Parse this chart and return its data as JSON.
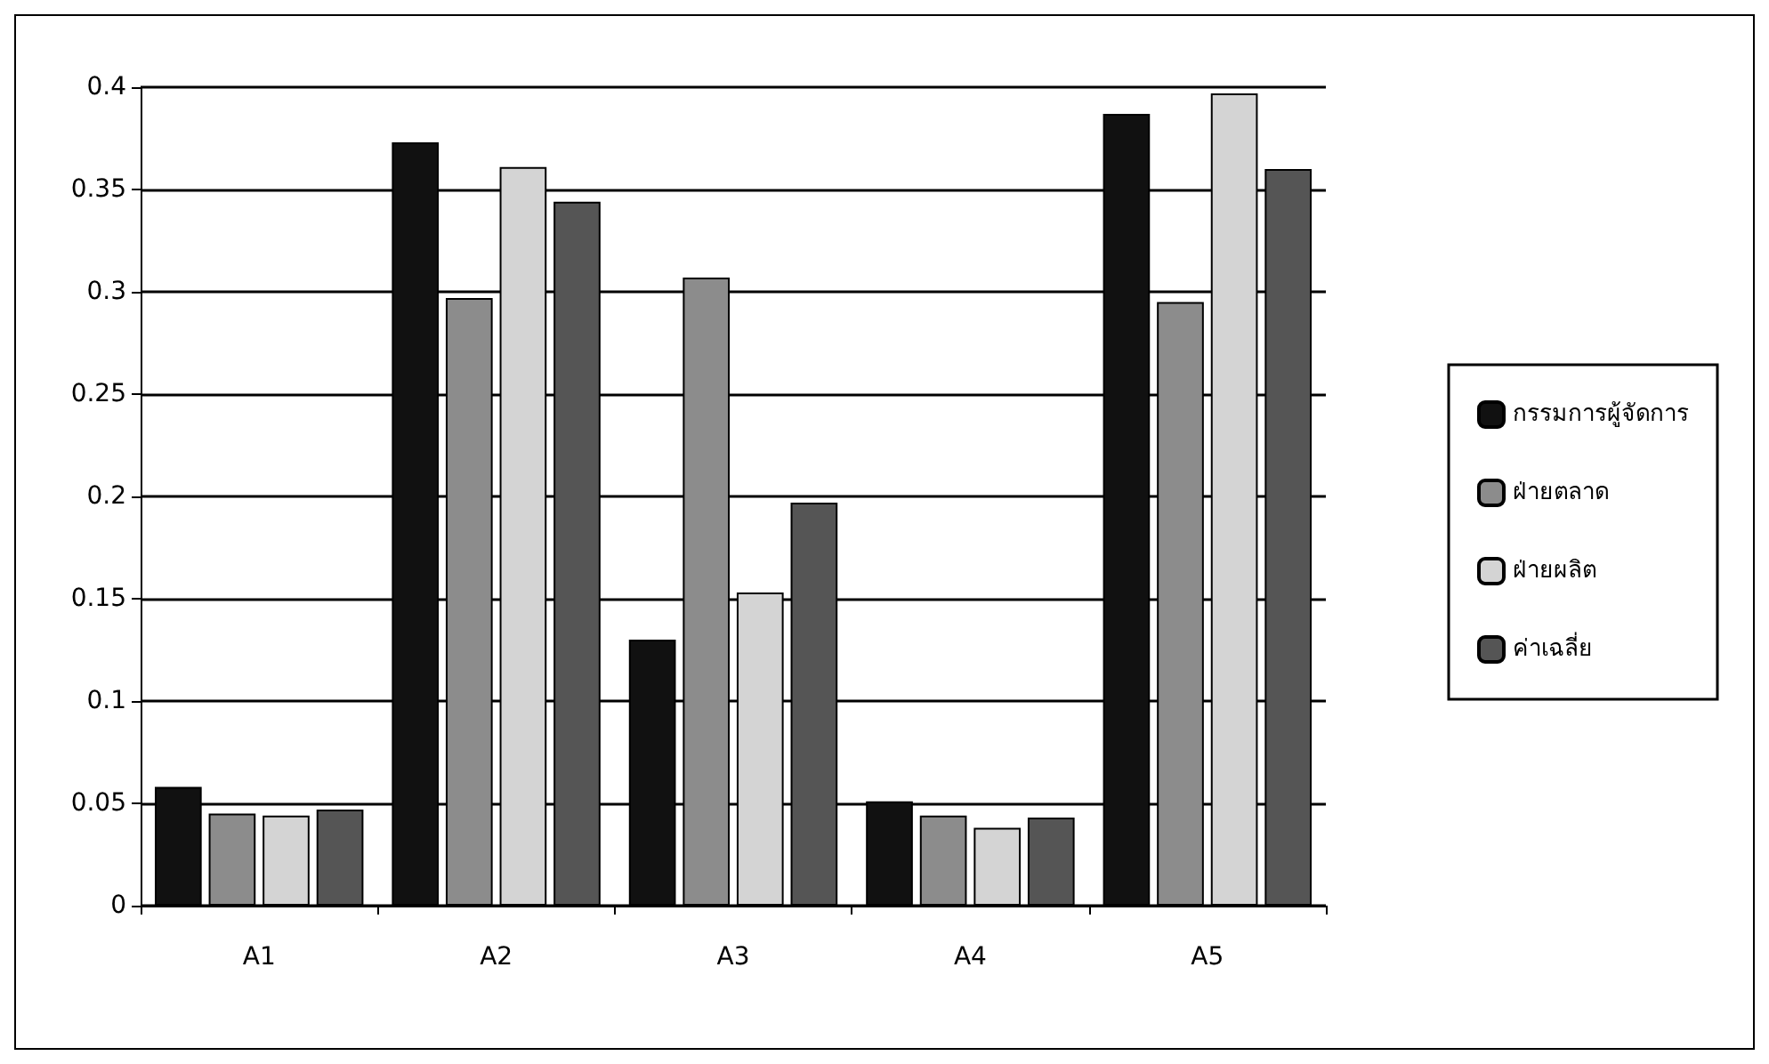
{
  "chart_data": {
    "type": "bar",
    "categories": [
      "A1",
      "A2",
      "A3",
      "A4",
      "A5"
    ],
    "series": [
      {
        "name": "กรรมการผู้จัดการ",
        "color": "#111111",
        "values": [
          0.058,
          0.373,
          0.13,
          0.051,
          0.387
        ]
      },
      {
        "name": "ฝ่ายตลาด",
        "color": "#8c8c8c",
        "values": [
          0.045,
          0.297,
          0.307,
          0.044,
          0.295
        ]
      },
      {
        "name": "ฝ่ายผลิต",
        "color": "#d4d4d4",
        "values": [
          0.044,
          0.361,
          0.153,
          0.038,
          0.397
        ]
      },
      {
        "name": "ค่าเฉลี่ย",
        "color": "#555555",
        "values": [
          0.047,
          0.344,
          0.197,
          0.043,
          0.36
        ]
      }
    ],
    "ylim": [
      0,
      0.4
    ],
    "yticks": [
      0,
      0.05,
      0.1,
      0.15,
      0.2,
      0.25,
      0.3,
      0.35,
      0.4
    ],
    "grid": "y",
    "legend": "right"
  }
}
